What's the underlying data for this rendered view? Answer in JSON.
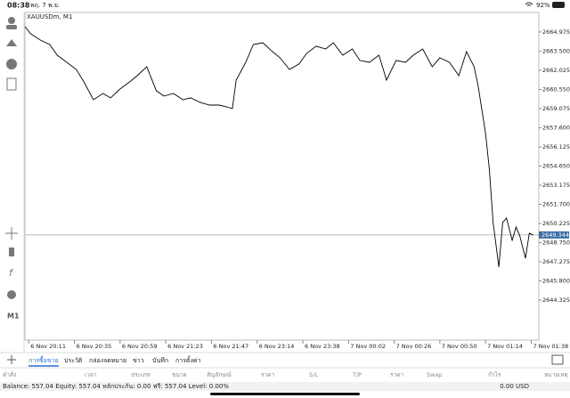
{
  "status_bar": {
    "time": "08:38",
    "date": "พฤ. 7 พ.ย.",
    "battery": "92%"
  },
  "toolbar": {
    "timeframe": "M1"
  },
  "chart_data": {
    "type": "line",
    "title": "XAUUSDm, M1",
    "x": [
      -2,
      1,
      6,
      11,
      15,
      20,
      25,
      29,
      34,
      39,
      43,
      48,
      53,
      57,
      62,
      67,
      71,
      76,
      81,
      85,
      90,
      95,
      100,
      104,
      107,
      109,
      114,
      118,
      123,
      128,
      132,
      137,
      142,
      146,
      151,
      156,
      160,
      165,
      170,
      174,
      179,
      184,
      188,
      193,
      198,
      202,
      207,
      212,
      216,
      221,
      226,
      230,
      234,
      236,
      240,
      242,
      244,
      247,
      249,
      251,
      254,
      256,
      258,
      261,
      263,
      265
    ],
    "series": [
      {
        "color": "#000000",
        "values": [
          2665.39,
          2664.84,
          2664.36,
          2664.01,
          2663.19,
          2662.64,
          2662.09,
          2661.13,
          2659.76,
          2660.24,
          2659.9,
          2660.59,
          2661.13,
          2661.61,
          2662.3,
          2660.45,
          2660.04,
          2660.24,
          2659.76,
          2659.9,
          2659.56,
          2659.35,
          2659.35,
          2659.21,
          2659.08,
          2661.27,
          2662.64,
          2664.01,
          2664.15,
          2663.47,
          2662.99,
          2662.09,
          2662.51,
          2663.33,
          2663.88,
          2663.67,
          2664.15,
          2663.19,
          2663.67,
          2662.78,
          2662.64,
          2663.19,
          2661.27,
          2662.78,
          2662.64,
          2663.19,
          2663.67,
          2662.3,
          2662.99,
          2662.64,
          2661.61,
          2663.47,
          2662.3,
          2660.93,
          2657.16,
          2654.42,
          2650.3,
          2646.87,
          2650.3,
          2650.64,
          2648.93,
          2649.96,
          2649.27,
          2647.55,
          2649.47,
          2649.344
        ]
      }
    ],
    "xlim": [
      -2,
      268
    ],
    "ylim": [
      2641.24,
      2666.48
    ],
    "yticks": [
      {
        "value": 2664.975,
        "label": "2664.975"
      },
      {
        "value": 2663.5,
        "label": "2663.500"
      },
      {
        "value": 2662.025,
        "label": "2662.025"
      },
      {
        "value": 2660.55,
        "label": "2660.550"
      },
      {
        "value": 2659.075,
        "label": "2659.075"
      },
      {
        "value": 2657.6,
        "label": "2657.600"
      },
      {
        "value": 2656.125,
        "label": "2656.125"
      },
      {
        "value": 2654.65,
        "label": "2654.650"
      },
      {
        "value": 2653.175,
        "label": "2653.175"
      },
      {
        "value": 2651.7,
        "label": "2651.700"
      },
      {
        "value": 2650.225,
        "label": "2650.225"
      },
      {
        "value": 2648.75,
        "label": "2648.750"
      },
      {
        "value": 2647.275,
        "label": "2647.275"
      },
      {
        "value": 2645.8,
        "label": "2645.800"
      },
      {
        "value": 2644.325,
        "label": "2644.325"
      }
    ],
    "xticks": [
      {
        "value": 0,
        "label": "6 Nov 20:11"
      },
      {
        "value": 24,
        "label": "6 Nov 20:35"
      },
      {
        "value": 48,
        "label": "6 Nov 20:59"
      },
      {
        "value": 72,
        "label": "6 Nov 21:23"
      },
      {
        "value": 96,
        "label": "6 Nov 21:47"
      },
      {
        "value": 120,
        "label": "6 Nov 23:14"
      },
      {
        "value": 144,
        "label": "6 Nov 23:38"
      },
      {
        "value": 168,
        "label": "7 Nov 00:02"
      },
      {
        "value": 192,
        "label": "7 Nov 00:26"
      },
      {
        "value": 216,
        "label": "7 Nov 00:50"
      },
      {
        "value": 240,
        "label": "7 Nov 01:14"
      },
      {
        "value": 264,
        "label": "7 Nov 01:38"
      }
    ],
    "current_price": 2649.344
  },
  "tabs": [
    "การซื้อขาย",
    "ประวัติ",
    "กล่องจดหมาย",
    "ข่าว",
    "บันทึก",
    "การตั้งค่า"
  ],
  "columns": [
    "คำสั่ง",
    "เวลา",
    "ประเภท",
    "ขนาด",
    "สัญลักษณ์",
    "ราคา",
    "S/L",
    "T/P",
    "ราคา",
    "Swap",
    "กำไร",
    "หมายเหตุ"
  ],
  "footer": {
    "summary": "Balance: 557.04 Equity: 557.04 หลักประกัน: 0.00 ฟรี: 557.04 Level: 0.00%",
    "total": "0.00 USD"
  }
}
